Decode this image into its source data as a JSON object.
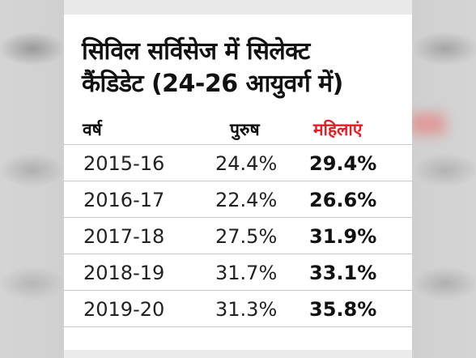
{
  "title": {
    "line1": "सिविल सर्विसेज में सिलेक्ट",
    "line2": "कैंडिडेट (24-26 आयुवर्ग में)"
  },
  "table": {
    "headers": {
      "year": "वर्ष",
      "men": "पुरुष",
      "women": "महिलाएं"
    },
    "rows": [
      {
        "year": "2015-16",
        "men": "24.4%",
        "women": "29.4%"
      },
      {
        "year": "2016-17",
        "men": "22.4%",
        "women": "26.6%"
      },
      {
        "year": "2017-18",
        "men": "27.5%",
        "women": "31.9%"
      },
      {
        "year": "2018-19",
        "men": "31.7%",
        "women": "33.1%"
      },
      {
        "year": "2019-20",
        "men": "31.3%",
        "women": "35.8%"
      }
    ]
  },
  "colors": {
    "women_header": "#e31e24",
    "text": "#111111",
    "background": "#ffffff"
  }
}
